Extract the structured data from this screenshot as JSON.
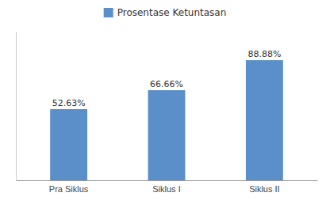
{
  "chart_data": {
    "type": "bar",
    "categories": [
      "Pra Siklus",
      "Siklus I",
      "Siklus II"
    ],
    "series": [
      {
        "name": "Prosentase Ketuntasan",
        "color": "#5B8FC9",
        "values": [
          52.63,
          66.66,
          88.88
        ],
        "value_labels": [
          "52.63%",
          "66.66%",
          "88.88%"
        ]
      }
    ],
    "ylim": [
      0,
      110
    ],
    "data_labels": true,
    "tick_labels": "x",
    "legend": "top",
    "grid": false
  }
}
